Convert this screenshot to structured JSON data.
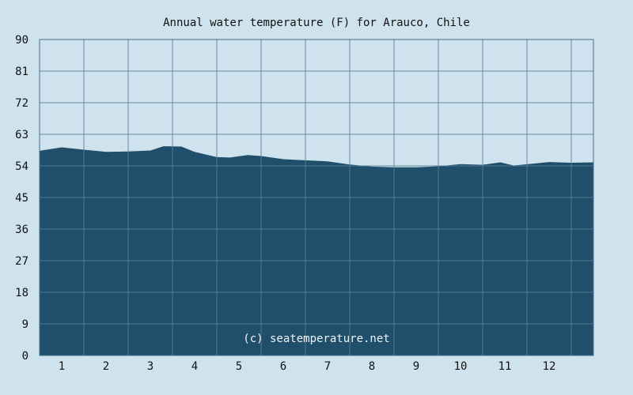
{
  "chart_data": {
    "type": "area",
    "title": "Annual water temperature (F) for Arauco, Chile",
    "xlabel": "",
    "ylabel": "",
    "ylim": [
      0,
      90
    ],
    "y_ticks": [
      0,
      9,
      18,
      27,
      36,
      45,
      54,
      63,
      72,
      81,
      90
    ],
    "x_ticks": [
      "1",
      "2",
      "3",
      "4",
      "5",
      "6",
      "7",
      "8",
      "9",
      "10",
      "11",
      "12"
    ],
    "grid": true,
    "series": [
      {
        "values": [
          {
            "x": 0.5,
            "y": 58.3
          },
          {
            "x": 1.0,
            "y": 59.3
          },
          {
            "x": 1.5,
            "y": 58.6
          },
          {
            "x": 2.0,
            "y": 58.0
          },
          {
            "x": 2.5,
            "y": 58.1
          },
          {
            "x": 3.0,
            "y": 58.4
          },
          {
            "x": 3.3,
            "y": 59.6
          },
          {
            "x": 3.7,
            "y": 59.5
          },
          {
            "x": 4.0,
            "y": 58.0
          },
          {
            "x": 4.5,
            "y": 56.5
          },
          {
            "x": 4.8,
            "y": 56.4
          },
          {
            "x": 5.2,
            "y": 57.1
          },
          {
            "x": 5.5,
            "y": 56.8
          },
          {
            "x": 6.0,
            "y": 55.9
          },
          {
            "x": 6.5,
            "y": 55.6
          },
          {
            "x": 7.0,
            "y": 55.3
          },
          {
            "x": 7.5,
            "y": 54.4
          },
          {
            "x": 8.0,
            "y": 53.8
          },
          {
            "x": 8.5,
            "y": 53.6
          },
          {
            "x": 9.0,
            "y": 53.6
          },
          {
            "x": 9.5,
            "y": 53.9
          },
          {
            "x": 10.0,
            "y": 54.5
          },
          {
            "x": 10.5,
            "y": 54.3
          },
          {
            "x": 10.9,
            "y": 55.0
          },
          {
            "x": 11.2,
            "y": 54.1
          },
          {
            "x": 11.6,
            "y": 54.6
          },
          {
            "x": 12.0,
            "y": 55.1
          },
          {
            "x": 12.5,
            "y": 54.9
          },
          {
            "x": 13.0,
            "y": 55.0
          }
        ]
      }
    ],
    "colors": {
      "background": "#cfe3ee",
      "fill": "#1f4f6b",
      "grid": "#4a6f88"
    }
  },
  "watermark": "(c) seatemperature.net"
}
